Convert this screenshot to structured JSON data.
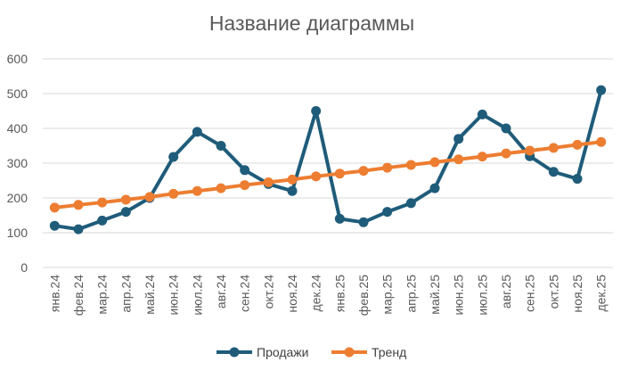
{
  "chart_data": {
    "type": "line",
    "title": "Название диаграммы",
    "xlabel": "",
    "ylabel": "",
    "ylim": [
      0,
      600
    ],
    "yticks": [
      0,
      100,
      200,
      300,
      400,
      500,
      600
    ],
    "grid": true,
    "legend_position": "bottom",
    "categories": [
      "янв.24",
      "фев.24",
      "мар.24",
      "апр.24",
      "май.24",
      "июн.24",
      "июл.24",
      "авг.24",
      "сен.24",
      "окт.24",
      "ноя.24",
      "дек.24",
      "янв.25",
      "фев.25",
      "мар.25",
      "апр.25",
      "май.25",
      "июн.25",
      "июл.25",
      "авг.25",
      "сен.25",
      "окт.25",
      "ноя.25",
      "дек.25"
    ],
    "series": [
      {
        "name": "Продажи",
        "color": "#1f5c7a",
        "values": [
          120,
          110,
          135,
          160,
          200,
          318,
          390,
          350,
          280,
          240,
          220,
          450,
          140,
          130,
          160,
          185,
          228,
          370,
          440,
          400,
          320,
          275,
          255,
          510
        ]
      },
      {
        "name": "Тренд",
        "color": "#ed7d31",
        "values": [
          172,
          180,
          187,
          195,
          203,
          212,
          220,
          228,
          237,
          245,
          253,
          262,
          270,
          278,
          287,
          295,
          303,
          311,
          319,
          328,
          336,
          344,
          353,
          361
        ]
      }
    ]
  }
}
